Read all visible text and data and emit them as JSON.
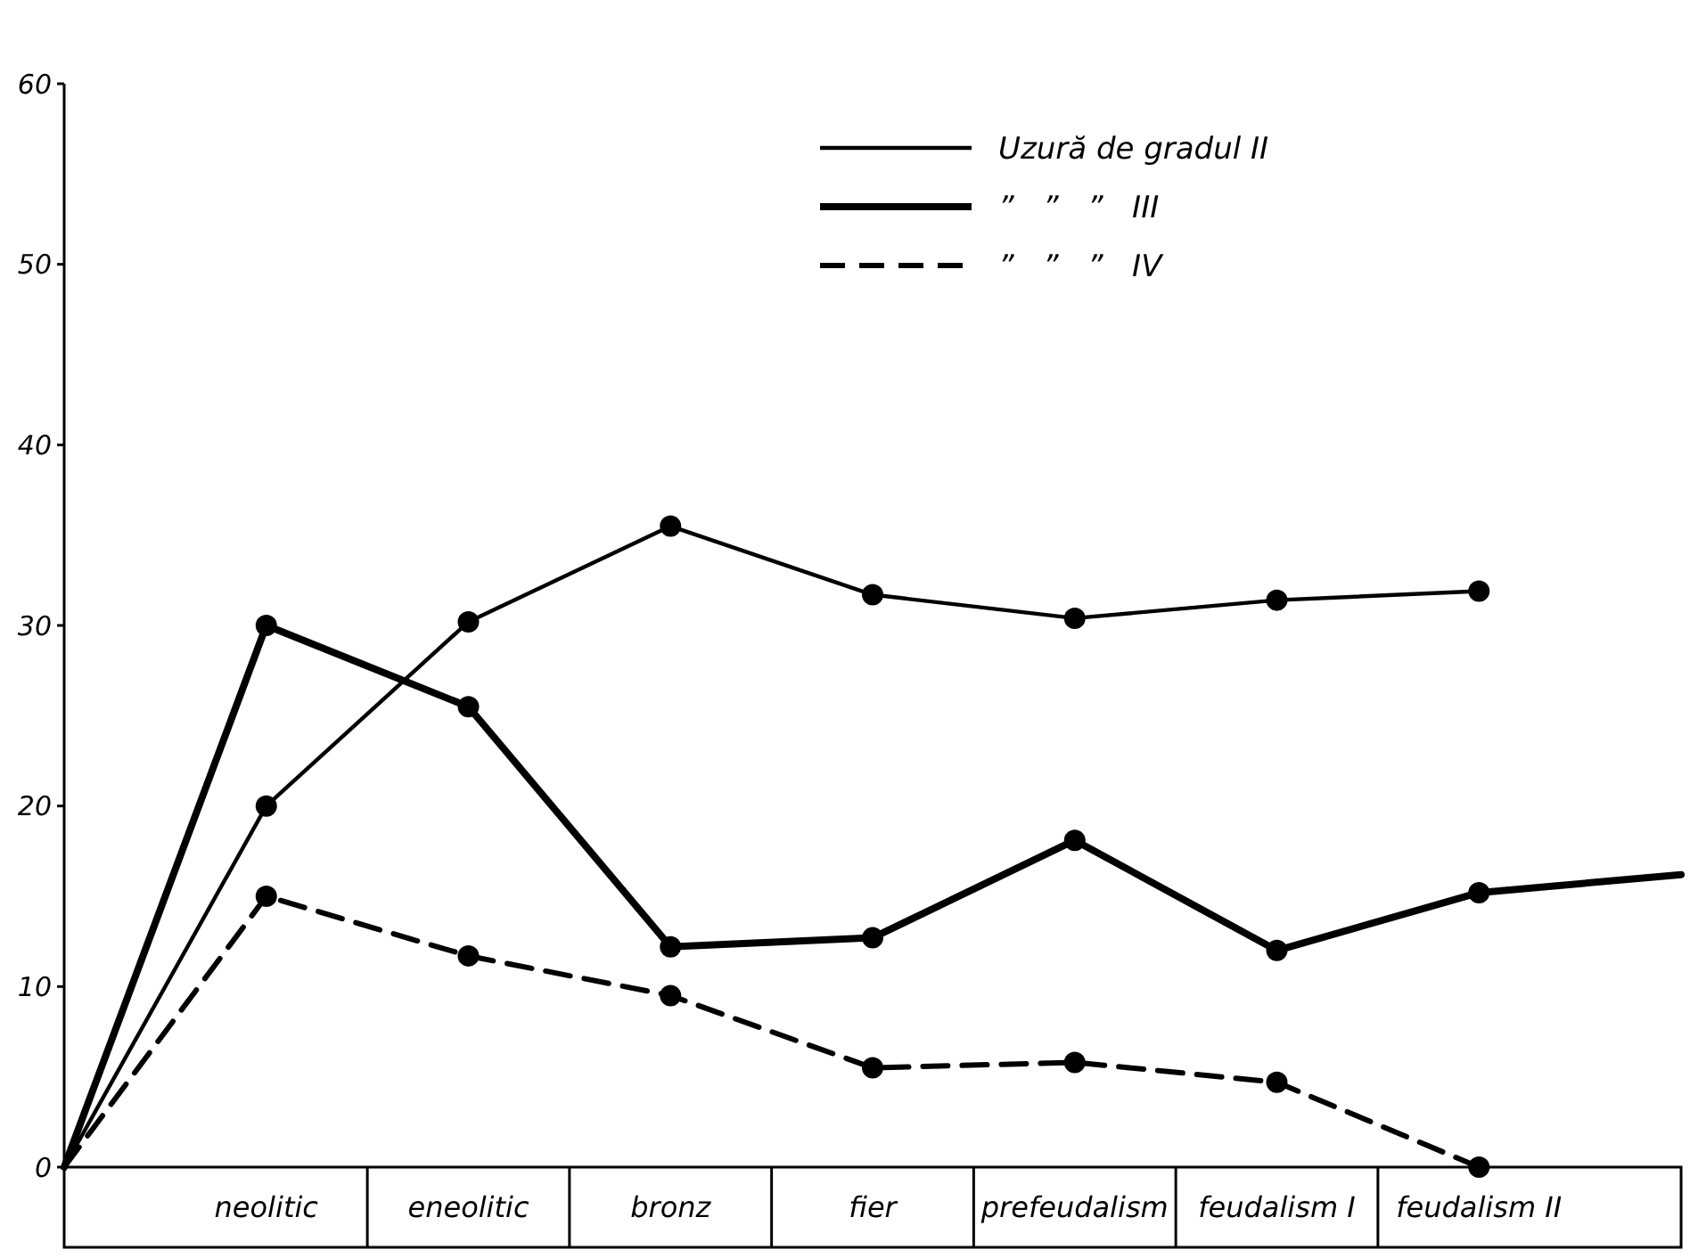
{
  "chart_data": {
    "type": "line",
    "categories": [
      null,
      "neolitic",
      "eneolitic",
      "bronz",
      "fier",
      "prefeudalism",
      "feudalism I",
      "feudalism II",
      null
    ],
    "ylim": [
      0,
      60
    ],
    "yticks": [
      0,
      10,
      20,
      30,
      40,
      50,
      60
    ],
    "marker": "circle",
    "legend": "top right",
    "grid": false,
    "series": [
      {
        "name": "Uzură de gradul II",
        "color": "#000000",
        "line_style": "solid",
        "values": [
          0,
          20.0,
          30.2,
          35.5,
          31.7,
          30.4,
          31.4,
          31.9,
          null
        ]
      },
      {
        "name": "”   ”   ”   III",
        "color": "#000000",
        "line_style": "solid",
        "values": [
          0,
          30.0,
          25.5,
          12.2,
          12.7,
          18.1,
          12.0,
          15.2,
          16.2
        ]
      },
      {
        "name": "”   ”   ”   IV",
        "color": "#000000",
        "line_style": "dashed",
        "values": [
          0,
          15.0,
          11.7,
          9.5,
          5.5,
          5.8,
          4.7,
          0,
          null
        ]
      }
    ]
  }
}
